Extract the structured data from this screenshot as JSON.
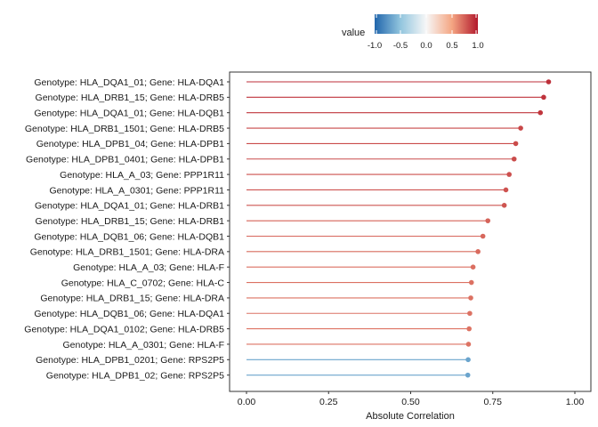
{
  "chart_data": {
    "type": "lollipop",
    "xlabel": "Absolute Correlation",
    "ylabel": "",
    "xlim": [
      0,
      1
    ],
    "xticks": [
      0.0,
      0.25,
      0.5,
      0.75,
      1.0
    ],
    "xtick_labels": [
      "0.00",
      "0.25",
      "0.50",
      "0.75",
      "1.00"
    ],
    "grid": false,
    "legend": {
      "title": "value",
      "placement": "top",
      "range": [
        -1,
        1
      ],
      "ticks": [
        -1.0,
        -0.5,
        0.0,
        0.5,
        1.0
      ],
      "tick_labels": [
        "-1.0",
        "-0.5",
        "0.0",
        "0.5",
        "1.0"
      ],
      "colors": {
        "low": "#2166ac",
        "mid": "#f7f7f7",
        "high": "#b2182b"
      }
    },
    "points": [
      {
        "label": "Genotype: HLA_DQA1_01; Gene: HLA-DQA1",
        "abs": 0.92,
        "value": 0.92
      },
      {
        "label": "Genotype: HLA_DRB1_15; Gene: HLA-DRB5",
        "abs": 0.905,
        "value": 0.905
      },
      {
        "label": "Genotype: HLA_DQA1_01; Gene: HLA-DQB1",
        "abs": 0.895,
        "value": 0.895
      },
      {
        "label": "Genotype: HLA_DRB1_1501; Gene: HLA-DRB5",
        "abs": 0.835,
        "value": 0.835
      },
      {
        "label": "Genotype: HLA_DPB1_04; Gene: HLA-DPB1",
        "abs": 0.82,
        "value": 0.82
      },
      {
        "label": "Genotype: HLA_DPB1_0401; Gene: HLA-DPB1",
        "abs": 0.815,
        "value": 0.815
      },
      {
        "label": "Genotype: HLA_A_03; Gene: PPP1R11",
        "abs": 0.8,
        "value": 0.8
      },
      {
        "label": "Genotype: HLA_A_0301; Gene: PPP1R11",
        "abs": 0.79,
        "value": 0.79
      },
      {
        "label": "Genotype: HLA_DQA1_01; Gene: HLA-DRB1",
        "abs": 0.785,
        "value": 0.785
      },
      {
        "label": "Genotype: HLA_DRB1_15; Gene: HLA-DRB1",
        "abs": 0.735,
        "value": 0.735
      },
      {
        "label": "Genotype: HLA_DQB1_06; Gene: HLA-DQB1",
        "abs": 0.72,
        "value": 0.72
      },
      {
        "label": "Genotype: HLA_DRB1_1501; Gene: HLA-DRA",
        "abs": 0.705,
        "value": 0.705
      },
      {
        "label": "Genotype: HLA_A_03; Gene: HLA-F",
        "abs": 0.69,
        "value": 0.69
      },
      {
        "label": "Genotype: HLA_C_0702; Gene: HLA-C",
        "abs": 0.685,
        "value": 0.685
      },
      {
        "label": "Genotype: HLA_DRB1_15; Gene: HLA-DRA",
        "abs": 0.683,
        "value": 0.683
      },
      {
        "label": "Genotype: HLA_DQB1_06; Gene: HLA-DQA1",
        "abs": 0.68,
        "value": 0.68
      },
      {
        "label": "Genotype: HLA_DQA1_0102; Gene: HLA-DRB5",
        "abs": 0.678,
        "value": 0.678
      },
      {
        "label": "Genotype: HLA_A_0301; Gene: HLA-F",
        "abs": 0.676,
        "value": 0.676
      },
      {
        "label": "Genotype: HLA_DPB1_0201; Gene: RPS2P5",
        "abs": 0.675,
        "value": -0.675
      },
      {
        "label": "Genotype: HLA_DPB1_02; Gene: RPS2P5",
        "abs": 0.674,
        "value": -0.674
      }
    ]
  }
}
